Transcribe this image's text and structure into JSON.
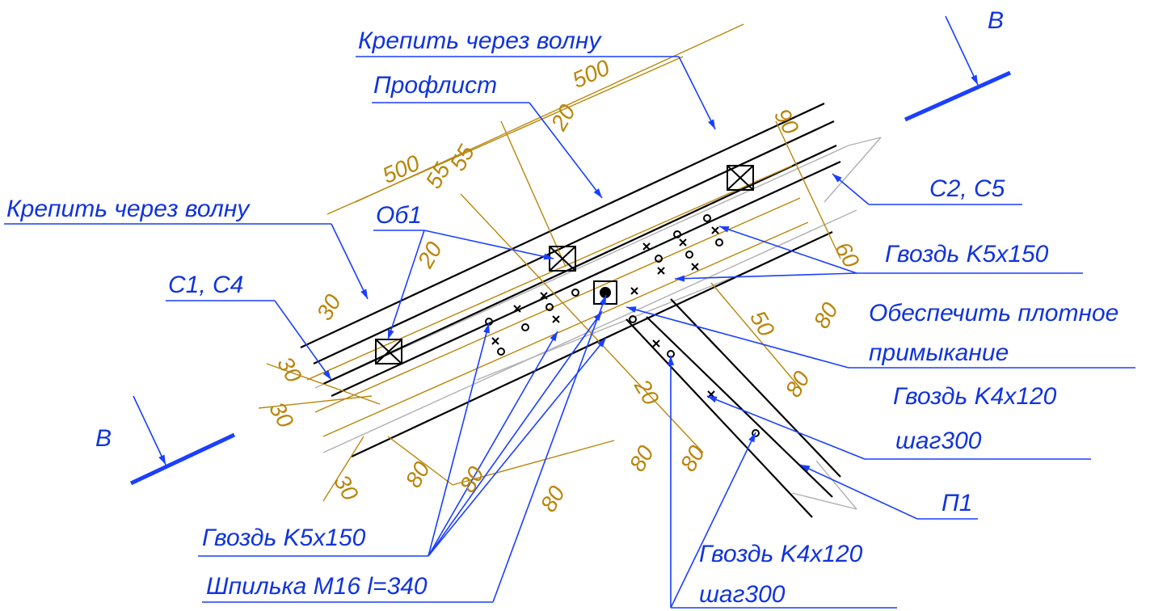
{
  "annotations": [
    "Крепить через волну",
    "Профлист",
    "Крепить через волну",
    "Об1",
    "C2, C5",
    "Гвоздь K5x150",
    "C1, C4",
    "Обеспечить плотное",
    "примыкание",
    "Гвоздь K4x120",
    "шаг300",
    "П1",
    "Гвоздь K5x150",
    "Шпилька M16 l=340",
    "Гвоздь K4x120",
    "шаг300"
  ],
  "section_marks": [
    "В",
    "В"
  ],
  "dimensions": [
    "500",
    "500",
    "55",
    "55",
    "20",
    "20",
    "90",
    "60",
    "50",
    "80",
    "80",
    "30",
    "30",
    "30",
    "30",
    "80",
    "80",
    "20",
    "80",
    "80",
    "80"
  ]
}
